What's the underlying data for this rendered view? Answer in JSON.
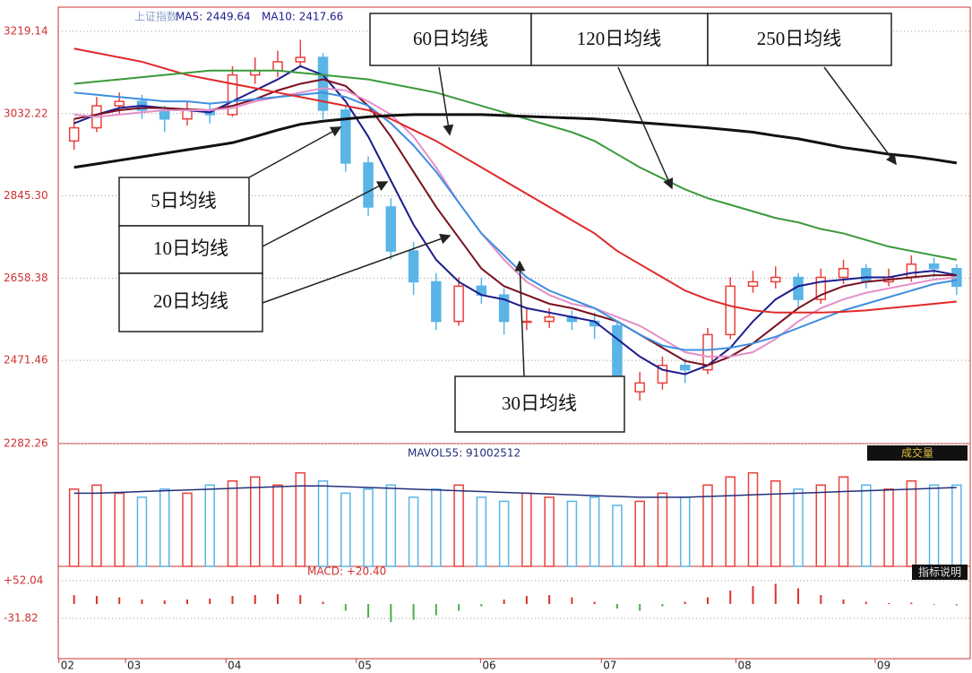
{
  "chart_data": [
    {
      "type": "candlestick",
      "name": "上证指数",
      "header_labels": [
        "MA5: 2449.64",
        "MA10: 2417.66"
      ],
      "x": [
        0,
        1,
        2,
        3,
        4,
        5,
        6,
        7,
        8,
        9,
        10,
        11,
        12,
        13,
        14,
        15,
        16,
        17,
        18,
        19,
        20,
        21,
        22,
        23,
        24,
        25,
        26,
        27,
        28,
        29,
        30,
        31,
        32,
        33,
        34,
        35,
        36,
        37,
        38,
        39
      ],
      "xlim": [
        -0.7,
        39.6
      ],
      "ylim": [
        2282.26,
        3219.14
      ],
      "yticks": [
        3219.14,
        3032.22,
        {
          "value": 2845.3,
          "label": "2845.30"
        },
        2658.38,
        2471.46,
        2282.26
      ],
      "grid": true,
      "up_color": "#e8413c",
      "down_color": "#5ab4e6",
      "candles": {
        "open": [
          2970,
          3000,
          3050,
          3060,
          3040,
          3020,
          3040,
          3030,
          3120,
          3130,
          3150,
          3160,
          3040,
          2920,
          2820,
          2720,
          2650,
          2560,
          2640,
          2620,
          2560,
          2560,
          2570,
          2560,
          2550,
          2400,
          2420,
          2460,
          2450,
          2530,
          2640,
          2650,
          2660,
          2610,
          2660,
          2680,
          2650,
          2660,
          2690,
          2680
        ],
        "high": [
          3020,
          3070,
          3080,
          3075,
          3050,
          3060,
          3055,
          3140,
          3160,
          3175,
          3200,
          3170,
          3050,
          2935,
          2840,
          2740,
          2670,
          2660,
          2660,
          2635,
          2590,
          2590,
          2585,
          2580,
          2560,
          2445,
          2480,
          2475,
          2545,
          2660,
          2675,
          2685,
          2670,
          2680,
          2700,
          2690,
          2680,
          2710,
          2705,
          2690
        ],
        "low": [
          2950,
          2990,
          3030,
          3020,
          2990,
          3005,
          3010,
          3025,
          3100,
          3115,
          3140,
          3020,
          2900,
          2800,
          2700,
          2620,
          2540,
          2550,
          2600,
          2530,
          2540,
          2545,
          2540,
          2520,
          2350,
          2380,
          2405,
          2420,
          2440,
          2520,
          2625,
          2635,
          2590,
          2600,
          2645,
          2635,
          2640,
          2650,
          2660,
          2620
        ],
        "close": [
          3000,
          3050,
          3060,
          3040,
          3020,
          3040,
          3030,
          3120,
          3130,
          3150,
          3160,
          3040,
          2920,
          2820,
          2720,
          2650,
          2560,
          2640,
          2620,
          2560,
          2560,
          2570,
          2560,
          2550,
          2400,
          2420,
          2460,
          2450,
          2530,
          2640,
          2650,
          2660,
          2610,
          2660,
          2680,
          2650,
          2660,
          2690,
          2680,
          2640
        ]
      },
      "series": [
        {
          "name": "5日均线",
          "color": "#1c1c8c",
          "values": [
            3010,
            3030,
            3045,
            3050,
            3045,
            3040,
            3035,
            3060,
            3085,
            3110,
            3140,
            3120,
            3060,
            2980,
            2880,
            2780,
            2700,
            2650,
            2620,
            2610,
            2590,
            2580,
            2570,
            2560,
            2520,
            2480,
            2450,
            2440,
            2460,
            2500,
            2560,
            2610,
            2640,
            2650,
            2655,
            2660,
            2660,
            2670,
            2675,
            2665
          ]
        },
        {
          "name": "10日均线",
          "color": "#7a1020",
          "values": [
            3020,
            3030,
            3040,
            3045,
            3045,
            3042,
            3040,
            3050,
            3065,
            3085,
            3100,
            3110,
            3095,
            3050,
            2980,
            2900,
            2820,
            2750,
            2680,
            2640,
            2620,
            2600,
            2590,
            2575,
            2560,
            2530,
            2500,
            2470,
            2460,
            2480,
            2510,
            2550,
            2590,
            2620,
            2640,
            2650,
            2655,
            2660,
            2665,
            2665
          ]
        },
        {
          "name": "20日均线",
          "color": "#e48fc8",
          "values": [
            3030,
            3025,
            3030,
            3035,
            3040,
            3040,
            3040,
            3045,
            3060,
            3070,
            3080,
            3090,
            3085,
            3060,
            3030,
            2980,
            2910,
            2830,
            2760,
            2700,
            2650,
            2620,
            2600,
            2590,
            2570,
            2550,
            2520,
            2490,
            2480,
            2480,
            2490,
            2520,
            2560,
            2590,
            2610,
            2625,
            2635,
            2645,
            2655,
            2660
          ]
        },
        {
          "name": "30日均线",
          "color": "#3d8fe0",
          "values": [
            3080,
            3075,
            3070,
            3065,
            3060,
            3060,
            3055,
            3060,
            3065,
            3070,
            3075,
            3080,
            3070,
            3050,
            3010,
            2960,
            2900,
            2830,
            2760,
            2710,
            2660,
            2630,
            2610,
            2590,
            2560,
            2530,
            2505,
            2495,
            2495,
            2500,
            2510,
            2525,
            2545,
            2565,
            2585,
            2600,
            2615,
            2630,
            2645,
            2654
          ]
        },
        {
          "name": "60日均线",
          "color": "#e02828",
          "values": [
            3180,
            3170,
            3160,
            3150,
            3135,
            3120,
            3110,
            3100,
            3090,
            3080,
            3070,
            3060,
            3050,
            3040,
            3020,
            2995,
            2970,
            2940,
            2910,
            2880,
            2850,
            2820,
            2790,
            2760,
            2720,
            2690,
            2660,
            2630,
            2610,
            2595,
            2585,
            2580,
            2580,
            2580,
            2582,
            2585,
            2590,
            2595,
            2600,
            2605
          ]
        },
        {
          "name": "120日均线",
          "color": "#3a9a3a",
          "values": [
            3100,
            3105,
            3110,
            3115,
            3120,
            3125,
            3130,
            3130,
            3130,
            3130,
            3125,
            3120,
            3115,
            3110,
            3100,
            3090,
            3080,
            3065,
            3050,
            3035,
            3020,
            3005,
            2990,
            2970,
            2940,
            2910,
            2885,
            2860,
            2840,
            2825,
            2810,
            2795,
            2785,
            2770,
            2760,
            2745,
            2730,
            2720,
            2710,
            2700
          ]
        },
        {
          "name": "250日均线",
          "color": "#111111",
          "values": [
            2910,
            2918,
            2926,
            2934,
            2942,
            2950,
            2958,
            2966,
            2980,
            2995,
            3008,
            3015,
            3020,
            3025,
            3028,
            3030,
            3030,
            3030,
            3030,
            3028,
            3026,
            3024,
            3022,
            3020,
            3016,
            3012,
            3008,
            3004,
            3000,
            2995,
            2990,
            2982,
            2975,
            2965,
            2955,
            2948,
            2940,
            2935,
            2928,
            2920
          ]
        }
      ]
    },
    {
      "type": "bar",
      "indicator_label": "MAVOL55: 91002512",
      "button": "成交量",
      "x": [
        0,
        1,
        2,
        3,
        4,
        5,
        6,
        7,
        8,
        9,
        10,
        11,
        12,
        13,
        14,
        15,
        16,
        17,
        18,
        19,
        20,
        21,
        22,
        23,
        24,
        25,
        26,
        27,
        28,
        29,
        30,
        31,
        32,
        33,
        34,
        35,
        36,
        37,
        38,
        39
      ],
      "xlim": [
        -0.7,
        39.6
      ],
      "ylim": [
        0,
        140000000
      ],
      "average_color": "#22307a",
      "values": [
        95000000,
        100000000,
        90000000,
        85000000,
        95000000,
        90000000,
        100000000,
        105000000,
        110000000,
        100000000,
        115000000,
        105000000,
        90000000,
        95000000,
        100000000,
        85000000,
        95000000,
        100000000,
        85000000,
        80000000,
        90000000,
        85000000,
        80000000,
        85000000,
        75000000,
        80000000,
        90000000,
        85000000,
        100000000,
        110000000,
        115000000,
        105000000,
        95000000,
        100000000,
        110000000,
        100000000,
        95000000,
        105000000,
        100000000,
        100000000
      ],
      "average_values": [
        90000000,
        90000000,
        91000000,
        92000000,
        93000000,
        94000000,
        95000000,
        96000000,
        97000000,
        98000000,
        99000000,
        99000000,
        98000000,
        97000000,
        96000000,
        95000000,
        94000000,
        93000000,
        92000000,
        91000000,
        90000000,
        89000000,
        88000000,
        87000000,
        86000000,
        85000000,
        85000000,
        85000000,
        86000000,
        87000000,
        88000000,
        89000000,
        90000000,
        91000000,
        92000000,
        93000000,
        94000000,
        95000000,
        96000000,
        97000000
      ]
    },
    {
      "type": "bar",
      "indicator_label": "MACD: +20.40",
      "button": "指标说明",
      "x": [
        0,
        1,
        2,
        3,
        4,
        5,
        6,
        7,
        8,
        9,
        10,
        11,
        12,
        13,
        14,
        15,
        16,
        17,
        18,
        19,
        20,
        21,
        22,
        23,
        24,
        25,
        26,
        27,
        28,
        29,
        30,
        31,
        32,
        33,
        34,
        35,
        36,
        37,
        38,
        39
      ],
      "xlim": [
        -0.7,
        39.6
      ],
      "ylim": [
        -121.7,
        68
      ],
      "yticks": [
        {
          "value": 52.04,
          "label": "+52.04"
        },
        -31.82
      ],
      "xticks": [
        {
          "value": -0.67,
          "label": "02"
        },
        {
          "value": 2.27,
          "label": "03"
        },
        {
          "value": 6.71,
          "label": "04"
        },
        {
          "value": 12.47,
          "label": "05"
        },
        {
          "value": 17.96,
          "label": "06"
        },
        {
          "value": 23.3,
          "label": "07"
        },
        {
          "value": 29.25,
          "label": "08"
        },
        {
          "value": 35.4,
          "label": "09"
        }
      ],
      "positive_color": "#e03030",
      "negative_color": "#48b048",
      "values": [
        20,
        18,
        15,
        10,
        8,
        10,
        12,
        18,
        20,
        22,
        20,
        5,
        -15,
        -30,
        -40,
        -35,
        -25,
        -15,
        -5,
        10,
        18,
        20,
        15,
        5,
        -10,
        -15,
        -5,
        5,
        15,
        30,
        40,
        45,
        35,
        20,
        10,
        5,
        2,
        3,
        -2,
        -3
      ]
    }
  ]
}
